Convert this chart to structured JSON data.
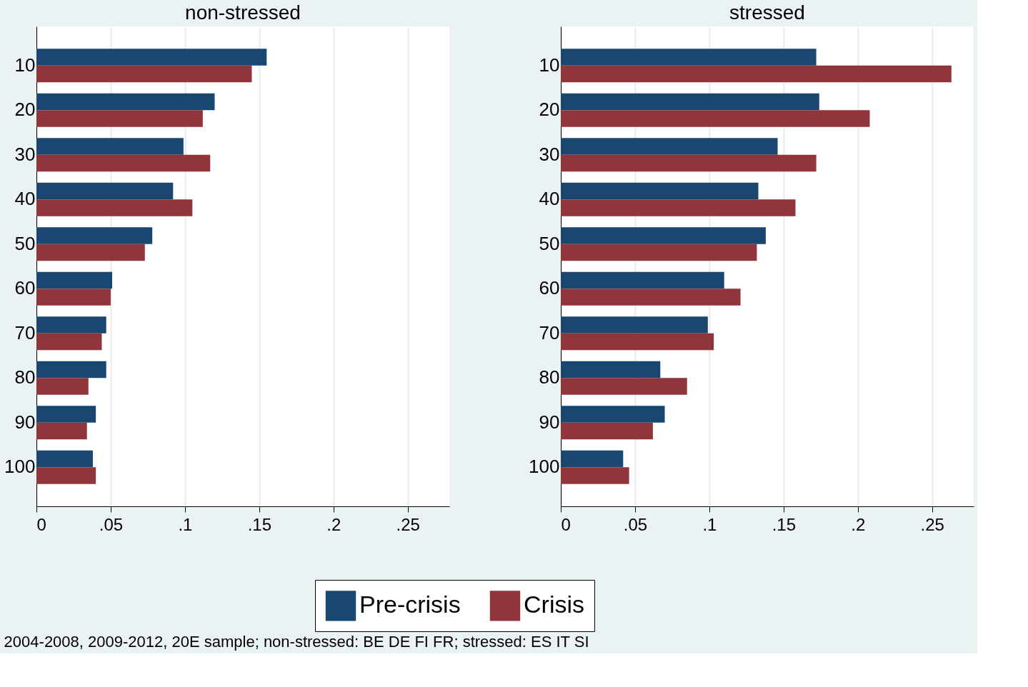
{
  "chart_data": [
    {
      "type": "bar",
      "orientation": "horizontal",
      "title": "non-stressed",
      "categories": [
        "10",
        "20",
        "30",
        "40",
        "50",
        "60",
        "70",
        "80",
        "90",
        "100"
      ],
      "series": [
        {
          "name": "Pre-crisis",
          "color": "#1a476f",
          "values": [
            0.155,
            0.12,
            0.099,
            0.092,
            0.078,
            0.051,
            0.047,
            0.047,
            0.04,
            0.038
          ]
        },
        {
          "name": "Crisis",
          "color": "#90353b",
          "values": [
            0.145,
            0.112,
            0.117,
            0.105,
            0.073,
            0.05,
            0.044,
            0.035,
            0.034,
            0.04
          ]
        }
      ],
      "xlim": [
        0,
        0.278
      ],
      "xticks": [
        0,
        {
          "value": 0.05,
          "label": ".05"
        },
        {
          "value": 0.1,
          "label": ".1"
        },
        {
          "value": 0.15,
          "label": ".15"
        },
        {
          "value": 0.2,
          "label": ".2"
        },
        {
          "value": 0.25,
          "label": ".25"
        }
      ],
      "grid": "x",
      "legend": "bottom",
      "annotations": [
        "2004-2008, 2009-2012, 20E sample; non-stressed: BE DE FI FR; stressed: ES IT SI"
      ]
    },
    {
      "type": "bar",
      "orientation": "horizontal",
      "title": "stressed",
      "categories": [
        "10",
        "20",
        "30",
        "40",
        "50",
        "60",
        "70",
        "80",
        "90",
        "100"
      ],
      "series": [
        {
          "name": "Pre-crisis",
          "color": "#1a476f",
          "values": [
            0.172,
            0.174,
            0.146,
            0.133,
            0.138,
            0.11,
            0.099,
            0.067,
            0.07,
            0.042
          ]
        },
        {
          "name": "Crisis",
          "color": "#90353b",
          "values": [
            0.263,
            0.208,
            0.172,
            0.158,
            0.132,
            0.121,
            0.103,
            0.085,
            0.062,
            0.046
          ]
        }
      ],
      "xlim": [
        0,
        0.278
      ],
      "xticks": [
        0,
        {
          "value": 0.05,
          "label": ".05"
        },
        {
          "value": 0.1,
          "label": ".1"
        },
        {
          "value": 0.15,
          "label": ".15"
        },
        {
          "value": 0.2,
          "label": ".2"
        },
        {
          "value": 0.25,
          "label": ".25"
        }
      ],
      "grid": "x",
      "legend": "bottom"
    }
  ]
}
